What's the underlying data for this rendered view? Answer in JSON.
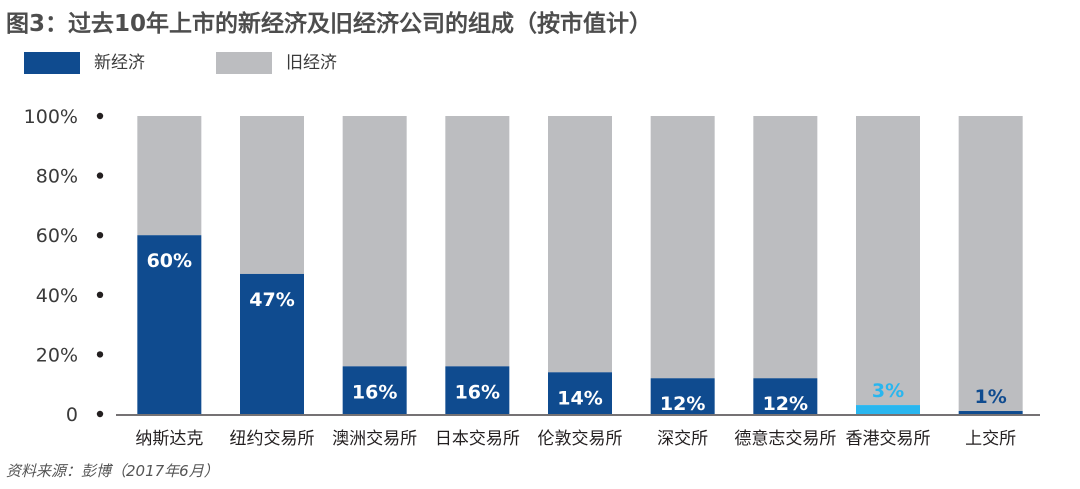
{
  "title": "图3：过去10年上市的新经济及旧经济公司的组成（按市值计）",
  "legend": [
    {
      "label": "新经济",
      "color": "#0f4b8f"
    },
    {
      "label": "旧经济",
      "color": "#bcbdc0"
    }
  ],
  "source": "资料来源：彭博（2017年6月）",
  "chart_data": {
    "type": "bar",
    "stacked": true,
    "categories": [
      "纳斯达克",
      "纽约交易所",
      "澳洲交易所",
      "日本交易所",
      "伦敦交易所",
      "深交所",
      "德意志交易所",
      "香港交易所",
      "上交所"
    ],
    "series": [
      {
        "name": "新经济",
        "values": [
          60,
          47,
          16,
          16,
          14,
          12,
          12,
          3,
          1
        ],
        "color": "#0f4b8f"
      },
      {
        "name": "旧经济",
        "values": [
          40,
          53,
          84,
          84,
          86,
          88,
          88,
          97,
          99
        ],
        "color": "#bcbdc0"
      }
    ],
    "data_labels": [
      "60%",
      "47%",
      "16%",
      "16%",
      "14%",
      "12%",
      "12%",
      "3%",
      "1%"
    ],
    "highlight": {
      "category": "香港交易所",
      "color": "#29b6ef"
    },
    "yticks": [
      "100%",
      "80%",
      "60%",
      "40%",
      "20%",
      "0"
    ],
    "ylim": [
      0,
      100
    ],
    "grid": false,
    "legend_position": "top-left"
  }
}
